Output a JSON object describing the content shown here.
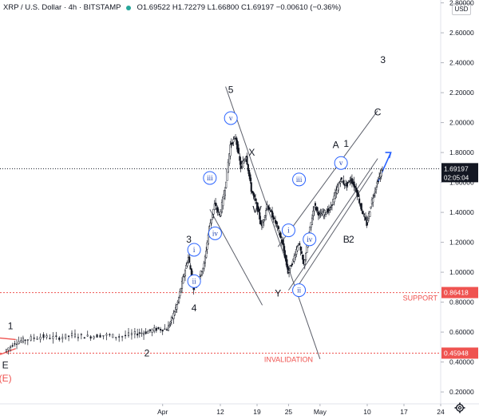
{
  "header": {
    "symbol": "XRP / U.S. Dollar · 4h · BITSTAMP",
    "ohlc": "O1.69522 H1.72279 L1.66800 C1.69197 −0.00610 (−0.36%)"
  },
  "currency_badge": "USD",
  "icons": {
    "settings": "gear-icon",
    "status": "market-status-dot"
  },
  "colors": {
    "candle": "#131722",
    "channel": "#5d606b",
    "support": "#ef5350",
    "arrow": "#2962ff",
    "wave_circle": "#2962ff"
  },
  "chart_data": {
    "type": "candlestick",
    "symbol": "XRP/USD",
    "timeframe": "4h",
    "y_axis": {
      "min": 0.1,
      "max": 2.9,
      "scale": "linear",
      "ticks": [
        "0.20000",
        "0.40000",
        "0.60000",
        "0.80000",
        "1.00000",
        "1.20000",
        "1.40000",
        "1.60000",
        "1.80000",
        "2.00000",
        "2.20000",
        "2.40000",
        "2.60000",
        "2.80000"
      ]
    },
    "x_axis": {
      "ticks": [
        {
          "label": "Apr",
          "day": 31
        },
        {
          "label": "12",
          "day": 42
        },
        {
          "label": "19",
          "day": 49
        },
        {
          "label": "25",
          "day": 55
        },
        {
          "label": "May",
          "day": 61
        },
        {
          "label": "10",
          "day": 70
        },
        {
          "label": "17",
          "day": 77
        },
        {
          "label": "24",
          "day": 84
        }
      ]
    },
    "price_path": [
      {
        "day": 1,
        "price": 0.47
      },
      {
        "day": 3,
        "price": 0.53
      },
      {
        "day": 5,
        "price": 0.55
      },
      {
        "day": 8,
        "price": 0.57
      },
      {
        "day": 11,
        "price": 0.56
      },
      {
        "day": 14,
        "price": 0.58
      },
      {
        "day": 17,
        "price": 0.57
      },
      {
        "day": 20,
        "price": 0.58
      },
      {
        "day": 23,
        "price": 0.57
      },
      {
        "day": 26,
        "price": 0.59
      },
      {
        "day": 28,
        "price": 0.6
      },
      {
        "day": 30,
        "price": 0.62
      },
      {
        "day": 32,
        "price": 0.62
      },
      {
        "day": 33,
        "price": 0.7
      },
      {
        "day": 34,
        "price": 0.8
      },
      {
        "day": 35,
        "price": 0.96
      },
      {
        "day": 36,
        "price": 1.1
      },
      {
        "day": 37,
        "price": 0.9
      },
      {
        "day": 38,
        "price": 0.96
      },
      {
        "day": 39,
        "price": 1.05
      },
      {
        "day": 40,
        "price": 1.3
      },
      {
        "day": 41,
        "price": 1.45
      },
      {
        "day": 42,
        "price": 1.38
      },
      {
        "day": 43,
        "price": 1.56
      },
      {
        "day": 44,
        "price": 1.85
      },
      {
        "day": 45,
        "price": 1.9
      },
      {
        "day": 46,
        "price": 1.7
      },
      {
        "day": 47,
        "price": 1.78
      },
      {
        "day": 48,
        "price": 1.55
      },
      {
        "day": 49,
        "price": 1.45
      },
      {
        "day": 50,
        "price": 1.3
      },
      {
        "day": 51,
        "price": 1.45
      },
      {
        "day": 52,
        "price": 1.38
      },
      {
        "day": 53,
        "price": 1.3
      },
      {
        "day": 54,
        "price": 1.18
      },
      {
        "day": 55,
        "price": 1.0
      },
      {
        "day": 56,
        "price": 1.08
      },
      {
        "day": 57,
        "price": 1.2
      },
      {
        "day": 58,
        "price": 1.05
      },
      {
        "day": 59,
        "price": 1.25
      },
      {
        "day": 60,
        "price": 1.45
      },
      {
        "day": 61,
        "price": 1.38
      },
      {
        "day": 62,
        "price": 1.4
      },
      {
        "day": 63,
        "price": 1.42
      },
      {
        "day": 64,
        "price": 1.52
      },
      {
        "day": 65,
        "price": 1.62
      },
      {
        "day": 66,
        "price": 1.58
      },
      {
        "day": 67,
        "price": 1.62
      },
      {
        "day": 68,
        "price": 1.55
      },
      {
        "day": 69,
        "price": 1.42
      },
      {
        "day": 70,
        "price": 1.32
      },
      {
        "day": 71,
        "price": 1.48
      },
      {
        "day": 72,
        "price": 1.6
      },
      {
        "day": 73,
        "price": 1.69197
      }
    ],
    "last_price": {
      "value": "1.69197",
      "countdown": "02:05:04"
    },
    "levels": [
      {
        "name": "SUPPORT",
        "price": 0.86418,
        "label": "0.86418"
      },
      {
        "name": "INVALIDATION",
        "price": 0.45948,
        "label": "0.45948"
      }
    ],
    "wave_labels": [
      {
        "text": "1",
        "day": 2,
        "price": 0.64,
        "style": "plain"
      },
      {
        "text": "E",
        "day": 1,
        "price": 0.38,
        "style": "plain"
      },
      {
        "text": "(E)",
        "day": 1,
        "price": 0.29,
        "style": "red"
      },
      {
        "text": "2",
        "day": 28,
        "price": 0.46,
        "style": "plain"
      },
      {
        "text": "3",
        "day": 36,
        "price": 1.22,
        "style": "plain"
      },
      {
        "text": "4",
        "day": 37,
        "price": 0.76,
        "style": "plain"
      },
      {
        "text": "5",
        "day": 44,
        "price": 2.22,
        "style": "plain"
      },
      {
        "text": "X",
        "day": 48,
        "price": 1.8,
        "style": "plain"
      },
      {
        "text": "W",
        "day": 49,
        "price": 1.42,
        "style": "plain"
      },
      {
        "text": "Y",
        "day": 53,
        "price": 0.86,
        "style": "plain"
      },
      {
        "text": "A",
        "day": 64,
        "price": 1.85,
        "style": "plain"
      },
      {
        "text": "1",
        "day": 66,
        "price": 1.86,
        "style": "plain"
      },
      {
        "text": "C",
        "day": 72,
        "price": 2.07,
        "style": "plain"
      },
      {
        "text": "3",
        "day": 73,
        "price": 2.42,
        "style": "plain"
      },
      {
        "text": "B",
        "day": 66,
        "price": 1.22,
        "style": "plain"
      },
      {
        "text": "2",
        "day": 67,
        "price": 1.22,
        "style": "plain"
      },
      {
        "text": "i",
        "day": 37,
        "price": 1.15,
        "style": "circle"
      },
      {
        "text": "ii",
        "day": 37,
        "price": 0.94,
        "style": "circle"
      },
      {
        "text": "iii",
        "day": 40,
        "price": 1.63,
        "style": "circle"
      },
      {
        "text": "iv",
        "day": 41,
        "price": 1.26,
        "style": "circle"
      },
      {
        "text": "v",
        "day": 44,
        "price": 2.03,
        "style": "circle"
      },
      {
        "text": "i",
        "day": 55,
        "price": 1.28,
        "style": "circle"
      },
      {
        "text": "ii",
        "day": 57,
        "price": 0.88,
        "style": "circle"
      },
      {
        "text": "iii",
        "day": 57,
        "price": 1.62,
        "style": "circle"
      },
      {
        "text": "iv",
        "day": 59,
        "price": 1.22,
        "style": "circle"
      },
      {
        "text": "v",
        "day": 65,
        "price": 1.73,
        "style": "circle"
      }
    ]
  }
}
